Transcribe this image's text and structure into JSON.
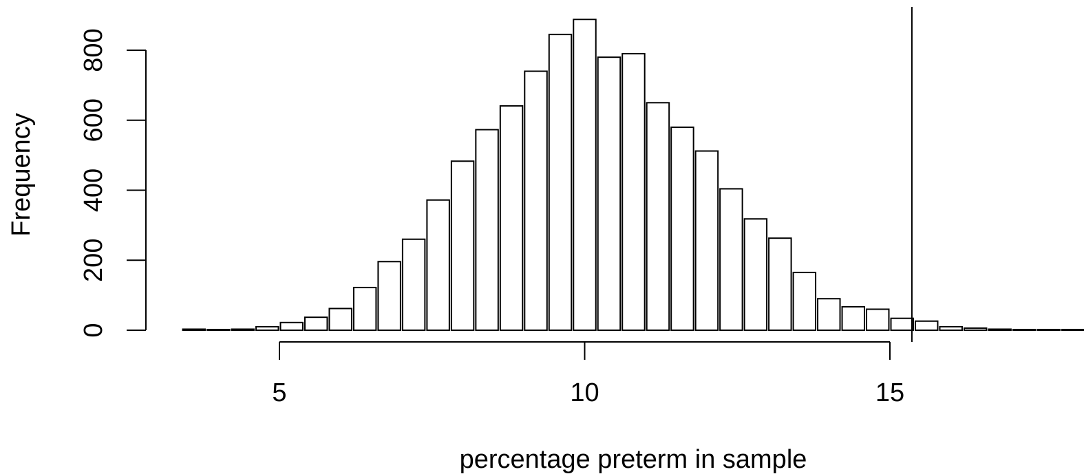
{
  "chart_data": {
    "type": "bar",
    "title": "",
    "xlabel": "percentage preterm in sample",
    "ylabel": "Frequency",
    "x_ticks": [
      5,
      10,
      15
    ],
    "y_ticks": [
      0,
      200,
      400,
      600,
      800
    ],
    "xlim": [
      3.36,
      18.2
    ],
    "ylim": [
      0,
      880
    ],
    "grid": false,
    "legend": "none",
    "bin_width": 0.4,
    "bins": [
      {
        "start": 3.4,
        "end": 3.8,
        "count": 3
      },
      {
        "start": 3.8,
        "end": 4.2,
        "count": 2
      },
      {
        "start": 4.2,
        "end": 4.6,
        "count": 3
      },
      {
        "start": 4.6,
        "end": 5.0,
        "count": 10
      },
      {
        "start": 5.0,
        "end": 5.4,
        "count": 22
      },
      {
        "start": 5.4,
        "end": 5.8,
        "count": 37
      },
      {
        "start": 5.8,
        "end": 6.2,
        "count": 62
      },
      {
        "start": 6.2,
        "end": 6.6,
        "count": 122
      },
      {
        "start": 6.6,
        "end": 7.0,
        "count": 196
      },
      {
        "start": 7.0,
        "end": 7.4,
        "count": 260
      },
      {
        "start": 7.4,
        "end": 7.8,
        "count": 372
      },
      {
        "start": 7.8,
        "end": 8.2,
        "count": 483
      },
      {
        "start": 8.2,
        "end": 8.6,
        "count": 573
      },
      {
        "start": 8.6,
        "end": 9.0,
        "count": 641
      },
      {
        "start": 9.0,
        "end": 9.4,
        "count": 740
      },
      {
        "start": 9.4,
        "end": 9.8,
        "count": 845
      },
      {
        "start": 9.8,
        "end": 10.2,
        "count": 888
      },
      {
        "start": 10.2,
        "end": 10.6,
        "count": 780
      },
      {
        "start": 10.6,
        "end": 11.0,
        "count": 790
      },
      {
        "start": 11.0,
        "end": 11.4,
        "count": 650
      },
      {
        "start": 11.4,
        "end": 11.8,
        "count": 580
      },
      {
        "start": 11.8,
        "end": 12.2,
        "count": 512
      },
      {
        "start": 12.2,
        "end": 12.6,
        "count": 404
      },
      {
        "start": 12.6,
        "end": 13.0,
        "count": 318
      },
      {
        "start": 13.0,
        "end": 13.4,
        "count": 263
      },
      {
        "start": 13.4,
        "end": 13.8,
        "count": 165
      },
      {
        "start": 13.8,
        "end": 14.2,
        "count": 90
      },
      {
        "start": 14.2,
        "end": 14.6,
        "count": 67
      },
      {
        "start": 14.6,
        "end": 15.0,
        "count": 60
      },
      {
        "start": 15.0,
        "end": 15.4,
        "count": 34
      },
      {
        "start": 15.4,
        "end": 15.8,
        "count": 26
      },
      {
        "start": 15.8,
        "end": 16.2,
        "count": 10
      },
      {
        "start": 16.2,
        "end": 16.6,
        "count": 6
      },
      {
        "start": 16.6,
        "end": 17.0,
        "count": 3
      },
      {
        "start": 17.0,
        "end": 17.4,
        "count": 2
      },
      {
        "start": 17.4,
        "end": 17.8,
        "count": 2
      },
      {
        "start": 17.8,
        "end": 18.2,
        "count": 2
      }
    ],
    "reference_line": {
      "x": 15.36
    },
    "colors": {
      "bar_fill": "#ffffff",
      "bar_stroke": "#000000",
      "axis": "#000000"
    }
  }
}
